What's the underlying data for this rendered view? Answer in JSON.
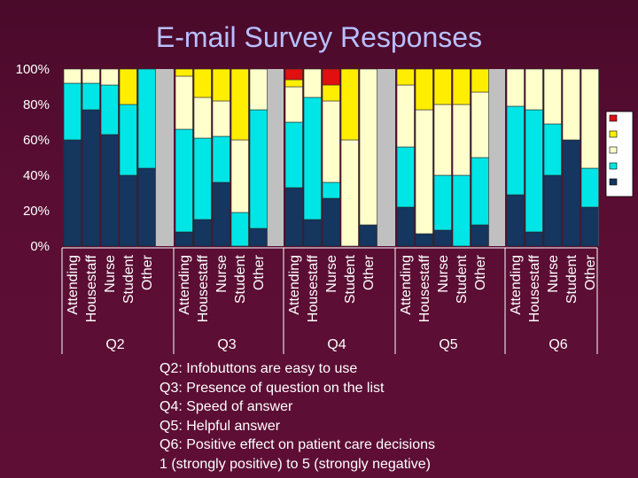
{
  "chart_data": {
    "type": "bar",
    "stacked": true,
    "title": "E-mail Survey Responses",
    "ylim": [
      0,
      100
    ],
    "y_ticks": [
      "0%",
      "20%",
      "40%",
      "60%",
      "80%",
      "100%"
    ],
    "grid": false,
    "legend_position": "right",
    "categories": [
      "Attending",
      "Housestaff",
      "Nurse",
      "Student",
      "Other"
    ],
    "groups": [
      {
        "name": "Q2",
        "bars": [
          [
            60,
            32,
            8,
            0,
            0
          ],
          [
            77,
            15,
            8,
            0,
            0
          ],
          [
            63,
            28,
            9,
            0,
            0
          ],
          [
            40,
            40,
            0,
            20,
            0
          ],
          [
            44,
            56,
            0,
            0,
            0
          ]
        ]
      },
      {
        "name": "Q3",
        "bars": [
          [
            8,
            58,
            30,
            4,
            0
          ],
          [
            15,
            46,
            23,
            16,
            0
          ],
          [
            36,
            26,
            20,
            18,
            0
          ],
          [
            0,
            19,
            41,
            40,
            0
          ],
          [
            10,
            67,
            23,
            0,
            0
          ]
        ]
      },
      {
        "name": "Q4",
        "bars": [
          [
            33,
            37,
            20,
            4,
            6
          ],
          [
            15,
            69,
            16,
            0,
            0
          ],
          [
            27,
            9,
            46,
            9,
            9
          ],
          [
            0,
            0,
            60,
            40,
            0
          ],
          [
            12,
            0,
            88,
            0,
            0
          ]
        ]
      },
      {
        "name": "Q5",
        "bars": [
          [
            22,
            34,
            35,
            9,
            0
          ],
          [
            7,
            0,
            70,
            23,
            0
          ],
          [
            9,
            31,
            40,
            20,
            0
          ],
          [
            0,
            40,
            40,
            20,
            0
          ],
          [
            12,
            38,
            37,
            13,
            0
          ]
        ]
      },
      {
        "name": "Q6",
        "bars": [
          [
            29,
            50,
            21,
            0,
            0
          ],
          [
            8,
            69,
            23,
            0,
            0
          ],
          [
            40,
            29,
            31,
            0,
            0
          ],
          [
            60,
            0,
            40,
            0,
            0
          ],
          [
            22,
            22,
            56,
            0,
            0
          ]
        ]
      }
    ],
    "series": [
      {
        "name": "1",
        "color": "#14365f"
      },
      {
        "name": "2",
        "color": "#00e5e5"
      },
      {
        "name": "3",
        "color": "#ffffcc"
      },
      {
        "name": "4",
        "color": "#ffee00"
      },
      {
        "name": "5",
        "color": "#e01010"
      }
    ],
    "plot_background": "#c0c0c0",
    "bar_background": "#5a0d33"
  },
  "notes": [
    "Q2: Infobuttons are easy to use",
    "Q3: Presence of question on the list",
    "Q4: Speed of answer",
    "Q5: Helpful answer",
    "Q6: Positive effect on patient care decisions",
    "1 (strongly positive) to 5 (strongly negative)"
  ]
}
